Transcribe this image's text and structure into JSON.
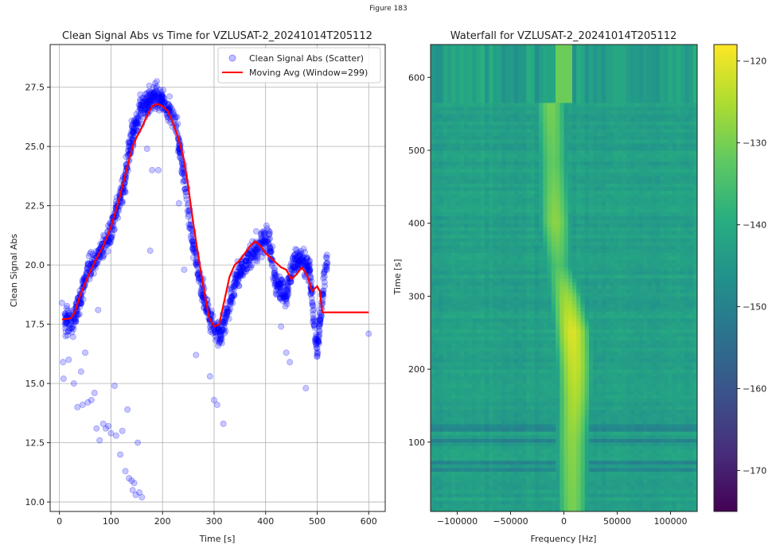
{
  "figure": {
    "title": "Figure 183"
  },
  "chart_data": [
    {
      "type": "scatter",
      "title": "Clean Signal Abs vs Time for VZLUSAT-2_20241014T205112",
      "xlabel": "Time [s]",
      "ylabel": "Clean Signal Abs",
      "xlim": [
        -18,
        632
      ],
      "ylim": [
        9.6,
        29.3
      ],
      "xticks": [
        0,
        100,
        200,
        300,
        400,
        500,
        600
      ],
      "yticks": [
        10.0,
        12.5,
        15.0,
        17.5,
        20.0,
        22.5,
        25.0,
        27.5
      ],
      "grid": true,
      "legend": "top-right",
      "series": [
        {
          "name": "Clean Signal Abs (Scatter)",
          "kind": "scatter",
          "color": "#0000ff",
          "profile": [
            [
              10,
              17.8
            ],
            [
              25,
              17.4
            ],
            [
              40,
              18.6
            ],
            [
              55,
              19.8
            ],
            [
              75,
              20.4
            ],
            [
              95,
              21.0
            ],
            [
              110,
              22.2
            ],
            [
              125,
              23.3
            ],
            [
              140,
              25.5
            ],
            [
              160,
              26.6
            ],
            [
              180,
              27.1
            ],
            [
              200,
              27.0
            ],
            [
              225,
              26.0
            ],
            [
              240,
              24.0
            ],
            [
              255,
              21.5
            ],
            [
              270,
              19.6
            ],
            [
              285,
              18.2
            ],
            [
              300,
              17.3
            ],
            [
              312,
              17.0
            ],
            [
              325,
              18.0
            ],
            [
              345,
              19.5
            ],
            [
              365,
              20.2
            ],
            [
              385,
              20.8
            ],
            [
              405,
              21.3
            ],
            [
              420,
              19.2
            ],
            [
              440,
              18.8
            ],
            [
              455,
              20.2
            ],
            [
              470,
              20.3
            ],
            [
              485,
              19.8
            ],
            [
              500,
              16.3
            ],
            [
              512,
              19.0
            ],
            [
              520,
              20.4
            ]
          ],
          "outliers": [
            [
              5,
              18.4
            ],
            [
              7,
              15.9
            ],
            [
              8,
              15.2
            ],
            [
              12,
              17.0
            ],
            [
              18,
              16.0
            ],
            [
              28,
              15.0
            ],
            [
              35,
              14.0
            ],
            [
              42,
              15.5
            ],
            [
              45,
              14.1
            ],
            [
              50,
              16.3
            ],
            [
              55,
              14.2
            ],
            [
              62,
              14.3
            ],
            [
              68,
              14.6
            ],
            [
              72,
              13.1
            ],
            [
              75,
              18.1
            ],
            [
              78,
              12.6
            ],
            [
              85,
              13.3
            ],
            [
              90,
              13.1
            ],
            [
              95,
              13.2
            ],
            [
              100,
              12.9
            ],
            [
              107,
              14.9
            ],
            [
              110,
              12.8
            ],
            [
              118,
              12.0
            ],
            [
              122,
              13.0
            ],
            [
              128,
              11.3
            ],
            [
              132,
              13.9
            ],
            [
              135,
              11.0
            ],
            [
              140,
              10.9
            ],
            [
              142,
              10.5
            ],
            [
              145,
              10.8
            ],
            [
              148,
              10.3
            ],
            [
              152,
              12.5
            ],
            [
              155,
              10.4
            ],
            [
              160,
              10.2
            ],
            [
              170,
              24.9
            ],
            [
              176,
              20.6
            ],
            [
              180,
              24.0
            ],
            [
              192,
              24.0
            ],
            [
              232,
              22.6
            ],
            [
              242,
              19.8
            ],
            [
              265,
              16.2
            ],
            [
              292,
              15.3
            ],
            [
              300,
              14.3
            ],
            [
              306,
              14.1
            ],
            [
              318,
              13.3
            ],
            [
              420,
              18.8
            ],
            [
              430,
              17.4
            ],
            [
              440,
              16.3
            ],
            [
              447,
              15.9
            ],
            [
              478,
              14.8
            ],
            [
              600,
              17.1
            ]
          ]
        },
        {
          "name": "Moving Avg (Window=299)",
          "kind": "line",
          "color": "#ff0000",
          "x": [
            5,
            22,
            30,
            40,
            55,
            70,
            85,
            100,
            115,
            130,
            142,
            150,
            160,
            170,
            180,
            190,
            200,
            210,
            220,
            230,
            240,
            250,
            260,
            270,
            280,
            290,
            300,
            310,
            320,
            330,
            340,
            350,
            360,
            370,
            380,
            390,
            400,
            410,
            420,
            430,
            440,
            450,
            460,
            470,
            480,
            490,
            500,
            505,
            510,
            520,
            540,
            600
          ],
          "y": [
            17.7,
            17.75,
            18.0,
            18.7,
            19.5,
            20.2,
            20.8,
            21.6,
            22.7,
            24.0,
            25.0,
            25.4,
            25.8,
            26.3,
            26.7,
            26.8,
            26.7,
            26.5,
            26.0,
            25.4,
            24.6,
            23.3,
            21.7,
            20.3,
            19.0,
            17.8,
            17.4,
            17.5,
            18.5,
            19.5,
            20.0,
            20.2,
            20.5,
            20.8,
            21.0,
            20.8,
            20.5,
            20.3,
            20.1,
            19.9,
            19.8,
            19.4,
            19.6,
            19.9,
            19.6,
            18.9,
            19.1,
            18.9,
            18.0,
            18.0,
            18.0,
            18.0
          ]
        }
      ]
    },
    {
      "type": "heatmap",
      "title": "Waterfall for VZLUSAT-2_20241014T205112",
      "xlabel": "Frequency [Hz]",
      "ylabel": "Time [s]",
      "xlim": [
        -125000,
        125000
      ],
      "ylim": [
        5,
        645
      ],
      "xticks": [
        -100000,
        -50000,
        0,
        50000,
        100000
      ],
      "xtick_labels": [
        "−100000",
        "−50000",
        "0",
        "50000",
        "100000"
      ],
      "yticks": [
        100,
        200,
        300,
        400,
        500,
        600
      ],
      "colormap": "viridis",
      "colorbar": {
        "range": [
          -175,
          -118
        ],
        "ticks": [
          -170,
          -160,
          -150,
          -140,
          -130,
          -120
        ],
        "tick_labels": [
          "−170",
          "−160",
          "−150",
          "−140",
          "−130",
          "−120"
        ]
      },
      "background_level": -143,
      "signal_track": [
        [
          5,
          8000,
          -130
        ],
        [
          100,
          8000,
          -128
        ],
        [
          160,
          10000,
          -125
        ],
        [
          200,
          10000,
          -123
        ],
        [
          250,
          8000,
          -121
        ],
        [
          300,
          2000,
          -127
        ],
        [
          340,
          -5000,
          -134
        ],
        [
          400,
          -8000,
          -128
        ],
        [
          480,
          -10000,
          -132
        ],
        [
          560,
          -12000,
          -130
        ]
      ],
      "gap_after_time": 565
    }
  ]
}
